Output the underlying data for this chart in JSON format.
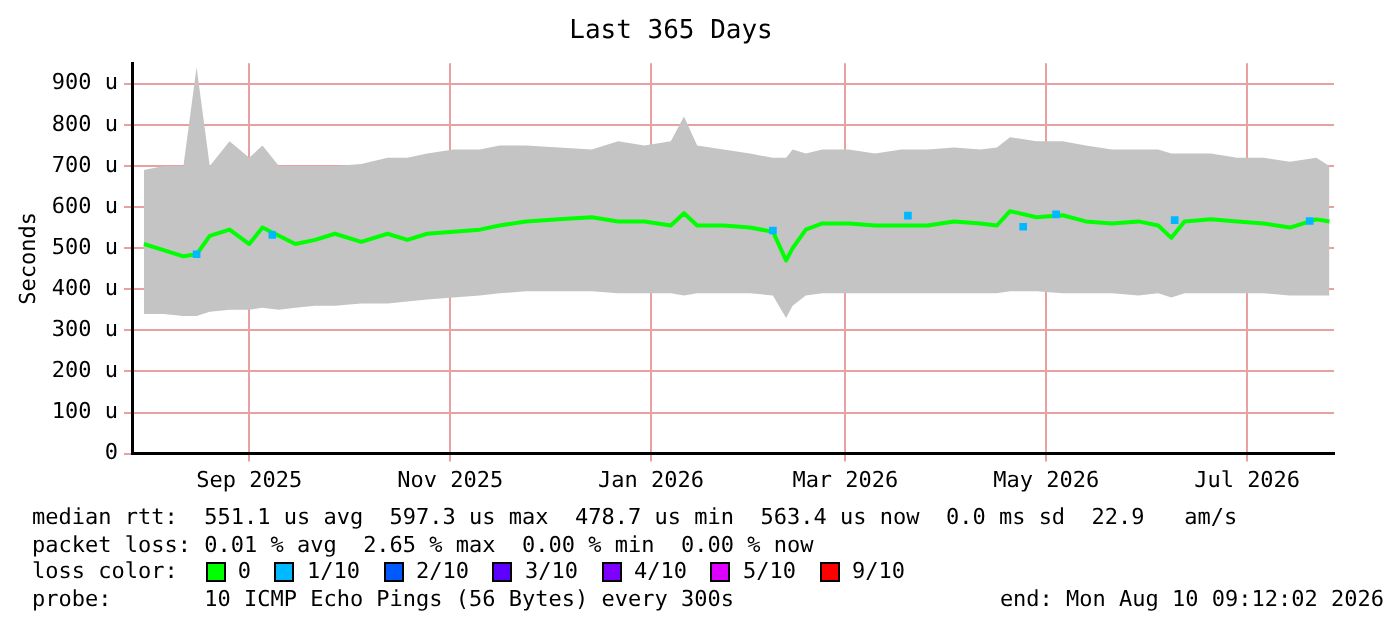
{
  "chart_data": {
    "type": "line",
    "title": "Last 365 Days",
    "ylabel": "Seconds",
    "legend_title": "loss color:",
    "legend": "bottom",
    "grid": true,
    "marker": "none",
    "line_style": "solid",
    "xlim": [
      "2025-08-10T09:12",
      "2026-08-10T09:12"
    ],
    "xticks": [
      {
        "value": "2025-09-15",
        "label": "Sep 2025"
      },
      {
        "value": "2025-11-15",
        "label": "Nov 2025"
      },
      {
        "value": "2026-01-15",
        "label": "Jan 2026"
      },
      {
        "value": "2026-03-15",
        "label": "Mar 2026"
      },
      {
        "value": "2026-05-15",
        "label": "May 2026"
      },
      {
        "value": "2026-07-15",
        "label": "Jul 2026"
      }
    ],
    "ylim": [
      0,
      950
    ],
    "yticks": [
      0,
      {
        "value": 100,
        "label": "100 u"
      },
      {
        "value": 200,
        "label": "200 u"
      },
      {
        "value": 300,
        "label": "300 u"
      },
      {
        "value": 400,
        "label": "400 u"
      },
      {
        "value": 500,
        "label": "500 u"
      },
      {
        "value": 600,
        "label": "600 u"
      },
      {
        "value": 700,
        "label": "700 u"
      },
      {
        "value": 800,
        "label": "800 u"
      },
      {
        "value": 900,
        "label": "900 u"
      }
    ],
    "series": [
      {
        "name": "0",
        "color": "#00ff00",
        "x": [
          "2025-08-14",
          "2025-08-20",
          "2025-08-26",
          "2025-08-30",
          "2025-09-03",
          "2025-09-09",
          "2025-09-15",
          "2025-09-19",
          "2025-09-24",
          "2025-09-29",
          "2025-10-05",
          "2025-10-11",
          "2025-10-19",
          "2025-10-27",
          "2025-11-02",
          "2025-11-08",
          "2025-11-16",
          "2025-11-24",
          "2025-11-30",
          "2025-12-08",
          "2025-12-18",
          "2025-12-28",
          "2026-01-05",
          "2026-01-13",
          "2026-01-21",
          "2026-01-25",
          "2026-01-29",
          "2026-02-06",
          "2026-02-14",
          "2026-02-21",
          "2026-02-25",
          "2026-02-27",
          "2026-03-03",
          "2026-03-08",
          "2026-03-16",
          "2026-03-24",
          "2026-04-01",
          "2026-04-09",
          "2026-04-17",
          "2026-04-25",
          "2026-04-30",
          "2026-05-04",
          "2026-05-12",
          "2026-05-20",
          "2026-05-27",
          "2026-06-04",
          "2026-06-12",
          "2026-06-18",
          "2026-06-22",
          "2026-06-26",
          "2026-07-04",
          "2026-07-12",
          "2026-07-20",
          "2026-07-28",
          "2026-08-05",
          "2026-08-09"
        ],
        "values": [
          510,
          495,
          480,
          485,
          530,
          545,
          510,
          550,
          530,
          510,
          520,
          535,
          515,
          535,
          520,
          535,
          540,
          545,
          555,
          565,
          570,
          575,
          565,
          565,
          555,
          585,
          555,
          555,
          550,
          540,
          470,
          500,
          545,
          560,
          560,
          555,
          555,
          555,
          565,
          560,
          555,
          590,
          575,
          580,
          565,
          560,
          565,
          555,
          525,
          565,
          570,
          565,
          560,
          550,
          570,
          565
        ],
        "lower": [
          340,
          340,
          335,
          335,
          345,
          350,
          350,
          355,
          350,
          355,
          360,
          360,
          365,
          365,
          370,
          375,
          380,
          385,
          390,
          395,
          395,
          395,
          390,
          390,
          390,
          385,
          390,
          390,
          390,
          385,
          330,
          360,
          385,
          390,
          390,
          390,
          390,
          390,
          390,
          390,
          390,
          395,
          395,
          390,
          390,
          390,
          385,
          390,
          380,
          390,
          390,
          390,
          390,
          385,
          385,
          385
        ],
        "upper": [
          690,
          700,
          700,
          940,
          700,
          760,
          720,
          750,
          700,
          700,
          700,
          700,
          705,
          720,
          720,
          730,
          740,
          740,
          750,
          750,
          745,
          740,
          760,
          750,
          760,
          820,
          750,
          740,
          730,
          720,
          720,
          740,
          730,
          740,
          740,
          730,
          740,
          740,
          745,
          740,
          745,
          770,
          760,
          760,
          750,
          740,
          740,
          740,
          730,
          730,
          730,
          720,
          720,
          710,
          720,
          700
        ]
      },
      {
        "name": "1/10",
        "color": "#00b8ff",
        "type": "scatter",
        "marker": "square",
        "x": [
          "2025-08-30",
          "2025-09-22",
          "2026-02-21",
          "2026-04-03",
          "2026-05-08",
          "2026-05-18",
          "2026-06-23",
          "2026-08-03"
        ],
        "values": [
          485,
          532,
          543,
          579,
          552,
          582,
          568,
          566
        ]
      },
      {
        "name": "2/10",
        "color": "#0059ff",
        "type": "scatter"
      },
      {
        "name": "3/10",
        "color": "#5e00ff",
        "type": "scatter"
      },
      {
        "name": "4/10",
        "color": "#7e00ff",
        "type": "scatter"
      },
      {
        "name": "5/10",
        "color": "#dd00ff",
        "type": "scatter"
      },
      {
        "name": "9/10",
        "color": "#ff0000",
        "type": "scatter"
      }
    ],
    "annotations": [
      "median rtt:  551.1 us avg  597.3 us max  478.7 us min  563.4 us now  0.0 ms sd  22.9   am/s",
      "packet loss: 0.01 % avg  2.65 % max  0.00 % min  0.00 % now",
      "probe:       10 ICMP Echo Pings (56 Bytes) every 300s",
      "end: Mon Aug 10 09:12:02 2026"
    ]
  }
}
